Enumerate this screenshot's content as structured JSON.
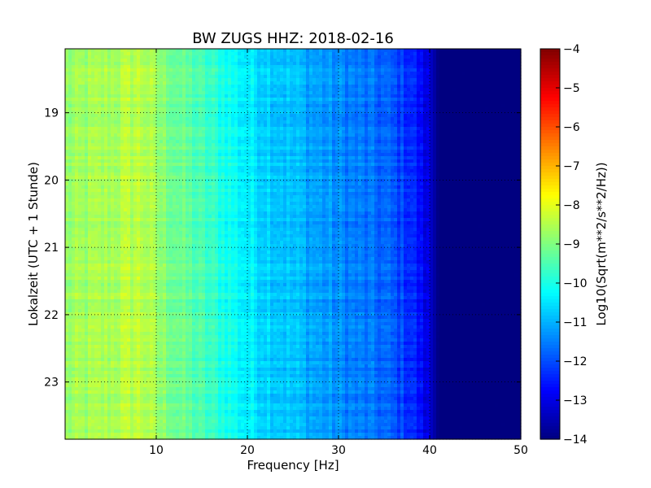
{
  "chart_data": {
    "type": "heatmap",
    "title": "BW ZUGS HHZ: 2018-02-16",
    "xlabel": "Frequency [Hz]",
    "ylabel": "Lokalzeit (UTC + 1 Stunde)",
    "xlim": [
      0,
      50
    ],
    "ylim": [
      18.05,
      23.85
    ],
    "x_ticks": [
      10,
      20,
      30,
      40,
      50
    ],
    "y_ticks": [
      19,
      20,
      21,
      22,
      23
    ],
    "grid": true,
    "colormap": "jet",
    "colorbar": {
      "label": "Log10(Sqrt(m**2/s**2/Hz))",
      "range": [
        -14,
        -4
      ],
      "ticks": [
        -4,
        -5,
        -6,
        -7,
        -8,
        -9,
        -10,
        -11,
        -12,
        -13,
        -14
      ]
    },
    "spectrum_profile": {
      "frequency_hz": [
        0,
        5,
        8,
        9,
        10,
        15,
        20,
        25,
        30,
        35,
        38,
        40,
        41,
        50
      ],
      "log10_psd": [
        -8.8,
        -8.6,
        -8.4,
        -8.5,
        -8.8,
        -9.6,
        -10.4,
        -10.9,
        -11.4,
        -11.8,
        -12.3,
        -13.2,
        -14,
        -14
      ]
    }
  }
}
